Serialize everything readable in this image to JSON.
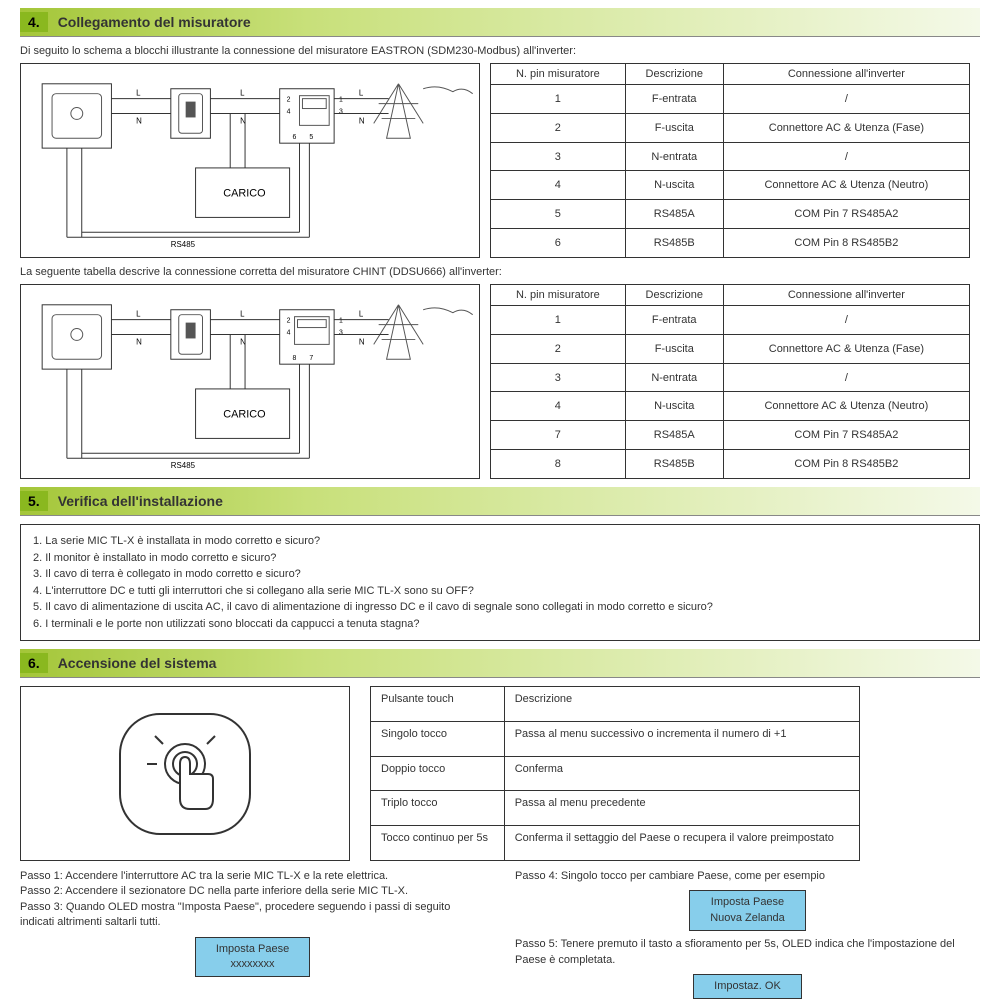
{
  "section4": {
    "num": "4.",
    "title": "Collegamento del misuratore",
    "intro1": "Di seguito lo schema a blocchi illustrante la connessione del misuratore EASTRON (SDM230-Modbus) all'inverter:",
    "intro2": "La seguente tabella descrive la connessione corretta del misuratore CHINT (DDSU666) all'inverter:",
    "diagram_carico": "CARICO",
    "diagram_rs485": "RS485",
    "table1": {
      "headers": [
        "N. pin misuratore",
        "Descrizione",
        "Connessione all'inverter"
      ],
      "rows": [
        [
          "1",
          "F-entrata",
          "/"
        ],
        [
          "2",
          "F-uscita",
          "Connettore AC & Utenza (Fase)"
        ],
        [
          "3",
          "N-entrata",
          "/"
        ],
        [
          "4",
          "N-uscita",
          "Connettore AC & Utenza (Neutro)"
        ],
        [
          "5",
          "RS485A",
          "COM Pin 7 RS485A2"
        ],
        [
          "6",
          "RS485B",
          "COM Pin 8 RS485B2"
        ]
      ]
    },
    "table2": {
      "headers": [
        "N. pin misuratore",
        "Descrizione",
        "Connessione all'inverter"
      ],
      "rows": [
        [
          "1",
          "F-entrata",
          "/"
        ],
        [
          "2",
          "F-uscita",
          "Connettore AC & Utenza (Fase)"
        ],
        [
          "3",
          "N-entrata",
          "/"
        ],
        [
          "4",
          "N-uscita",
          "Connettore AC & Utenza (Neutro)"
        ],
        [
          "7",
          "RS485A",
          "COM Pin 7 RS485A2"
        ],
        [
          "8",
          "RS485B",
          "COM Pin 8 RS485B2"
        ]
      ]
    }
  },
  "section5": {
    "num": "5.",
    "title": "Verifica dell'installazione",
    "checks": [
      "1. La serie MIC TL-X è installata in modo corretto e sicuro?",
      "2. Il monitor è installato in modo corretto e sicuro?",
      "3. Il cavo di terra è collegato in modo corretto e sicuro?",
      "4. L'interruttore DC e tutti gli interruttori che si collegano alla serie MIC TL-X sono su OFF?",
      "5. Il cavo di alimentazione di uscita AC, il cavo di alimentazione di ingresso DC e il cavo di segnale sono collegati in modo corretto e sicuro?",
      "6. I terminali e le porte non utilizzati sono bloccati da cappucci a tenuta stagna?"
    ]
  },
  "section6": {
    "num": "6.",
    "title": "Accensione del sistema",
    "touch_table": {
      "rows": [
        [
          "Pulsante touch",
          "Descrizione"
        ],
        [
          "Singolo tocco",
          "Passa al menu successivo o incrementa il numero di +1"
        ],
        [
          "Doppio tocco",
          "Conferma"
        ],
        [
          "Triplo tocco",
          "Passa al menu precedente"
        ],
        [
          "Tocco continuo per 5s",
          "Conferma il settaggio del Paese o recupera il valore preimpostato"
        ]
      ]
    },
    "steps_left": [
      "Passo 1: Accendere l'interruttore AC tra la serie MIC TL-X e la rete elettrica.",
      "Passo 2: Accendere il sezionatore DC nella parte inferiore della serie MIC TL-X.",
      "Passo 3: Quando OLED mostra \"Imposta Paese\", procedere seguendo i passi di seguito indicati altrimenti saltarli tutti."
    ],
    "steps_right": [
      "Passo 4: Singolo tocco per cambiare Paese, come per esempio",
      "Passo 5: Tenere premuto il tasto a sfioramento per 5s, OLED indica che l'impostazione del Paese è completata."
    ],
    "oled1_l1": "Imposta Paese",
    "oled1_l2": "xxxxxxxx",
    "oled2_l1": "Imposta Paese",
    "oled2_l2": "Nuova Zelanda",
    "oled3": "Impostaz. OK"
  }
}
